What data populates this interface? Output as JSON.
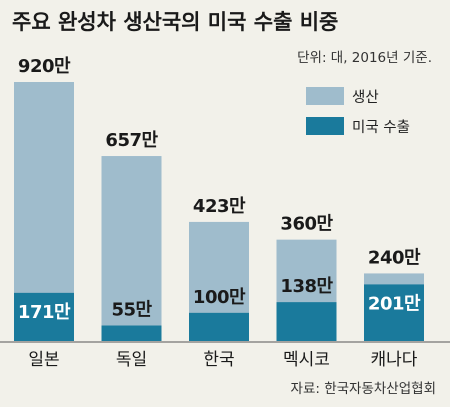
{
  "chart_data": {
    "type": "bar",
    "title": "주요 완성차 생산국의 미국 수출 비중",
    "unit_note": "단위: 대, 2016년 기준.",
    "source": "자료: 한국자동차산업협회",
    "categories": [
      "일본",
      "독일",
      "한국",
      "멕시코",
      "캐나다"
    ],
    "series": [
      {
        "name": "생산",
        "values": [
          920,
          657,
          423,
          360,
          240
        ],
        "labels": [
          "920만",
          "657만",
          "423만",
          "360만",
          "240만"
        ]
      },
      {
        "name": "미국 수출",
        "values": [
          171,
          55,
          100,
          138,
          201
        ],
        "labels": [
          "171만",
          "55만",
          "100만",
          "138만",
          "201만"
        ]
      }
    ],
    "overlay": true,
    "ylim": [
      0,
      920
    ],
    "legend_position": "top-right",
    "grid": false,
    "colors": {
      "production": "#9fbccc",
      "export": "#1a7a9c",
      "background": "#f2f1ea"
    }
  }
}
